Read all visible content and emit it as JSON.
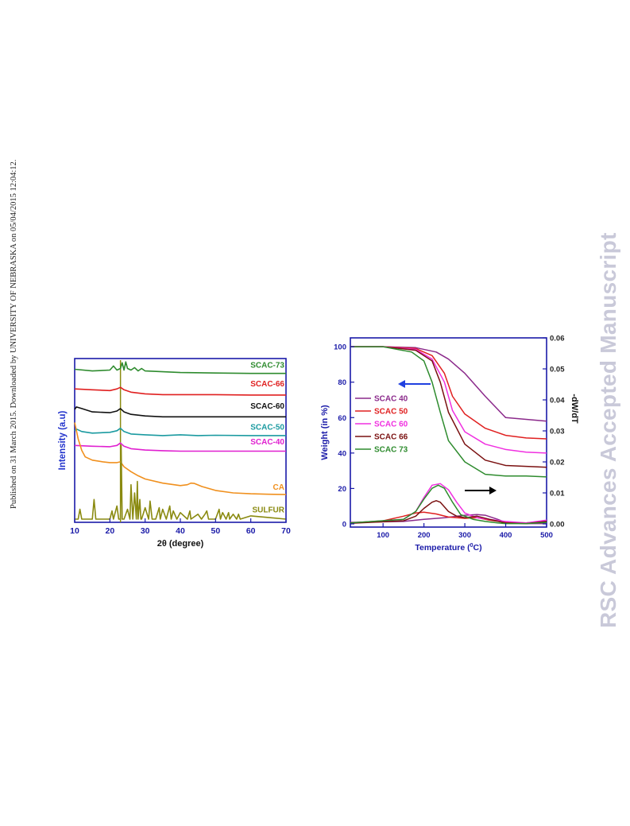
{
  "side_note": "Published on 31 March 2015. Downloaded by UNIVERSITY OF NEBRASKA on 05/04/2015 12:04:12.",
  "watermark": "RSC Advances Accepted Manuscript",
  "chart_data": [
    {
      "type": "line",
      "title": "",
      "xlabel": "2θ (degree)",
      "ylabel": "Intensity (a.u)",
      "xlim": [
        10,
        70
      ],
      "xticks": [
        10,
        20,
        30,
        40,
        50,
        60,
        70
      ],
      "grid": false,
      "legend": "direct labels at right end of each trace",
      "reference_line_x": 23,
      "colors": {
        "axis": "#1a1aa8"
      },
      "series": [
        {
          "name": "SCAC-73",
          "color": "#2e8b2e",
          "x": [
            10,
            15,
            20,
            21,
            22,
            23,
            23.5,
            24,
            24.5,
            25,
            26,
            27,
            28,
            29,
            30,
            35,
            40,
            50,
            60,
            70
          ],
          "y": [
            9.15,
            9.05,
            9.1,
            9.35,
            9.1,
            9.2,
            9.55,
            9.1,
            9.6,
            9.2,
            9.1,
            9.25,
            9.05,
            9.2,
            9.05,
            9.0,
            8.95,
            8.92,
            8.9,
            8.9
          ]
        },
        {
          "name": "SCAC-66",
          "color": "#e02020",
          "x": [
            10,
            15,
            20,
            22,
            23,
            24,
            26,
            30,
            35,
            40,
            50,
            60,
            70
          ],
          "y": [
            7.95,
            7.9,
            7.85,
            7.95,
            8.05,
            7.9,
            7.75,
            7.65,
            7.6,
            7.6,
            7.6,
            7.58,
            7.58
          ]
        },
        {
          "name": "SCAC-60",
          "color": "#111111",
          "x": [
            10,
            10.5,
            12,
            15,
            20,
            22,
            23,
            24,
            26,
            30,
            35,
            40,
            50,
            60,
            70
          ],
          "y": [
            6.7,
            6.85,
            6.75,
            6.55,
            6.5,
            6.6,
            6.75,
            6.55,
            6.4,
            6.3,
            6.25,
            6.25,
            6.25,
            6.25,
            6.25
          ]
        },
        {
          "name": "SCAC-50",
          "color": "#1a9aa0",
          "x": [
            10,
            10.5,
            12,
            15,
            20,
            22,
            23,
            24,
            26,
            30,
            35,
            40,
            45,
            50,
            60,
            70
          ],
          "y": [
            5.4,
            5.5,
            5.35,
            5.25,
            5.3,
            5.4,
            5.55,
            5.35,
            5.2,
            5.15,
            5.1,
            5.15,
            5.1,
            5.12,
            5.1,
            5.1
          ]
        },
        {
          "name": "SCAC-40",
          "color": "#e020d0",
          "x": [
            10,
            15,
            20,
            22,
            23,
            24,
            26,
            30,
            35,
            40,
            50,
            60,
            70
          ],
          "y": [
            4.5,
            4.45,
            4.42,
            4.5,
            4.65,
            4.45,
            4.3,
            4.22,
            4.18,
            4.15,
            4.15,
            4.15,
            4.15
          ]
        },
        {
          "name": "CA",
          "color": "#f0901e",
          "x": [
            10,
            11,
            12,
            13,
            15,
            18,
            20,
            22,
            23,
            24,
            26,
            28,
            30,
            35,
            40,
            42,
            43,
            44,
            46,
            50,
            55,
            60,
            65,
            70
          ],
          "y": [
            5.9,
            4.9,
            4.2,
            3.8,
            3.6,
            3.5,
            3.45,
            3.45,
            3.5,
            3.2,
            2.9,
            2.65,
            2.45,
            2.2,
            2.05,
            2.1,
            2.2,
            2.18,
            2.0,
            1.75,
            1.6,
            1.55,
            1.52,
            1.5
          ]
        },
        {
          "name": "SULFUR",
          "color": "#8a8a10",
          "x": [
            10,
            11,
            11.5,
            12,
            15,
            15.5,
            16,
            20,
            20.6,
            21,
            22,
            22.5,
            23,
            23.2,
            23.5,
            24,
            25,
            25.7,
            26,
            26.5,
            27,
            27.5,
            27.8,
            28,
            28.5,
            28.8,
            29,
            30,
            31,
            31.4,
            32,
            33,
            34,
            34.3,
            35,
            36,
            37,
            37.4,
            38,
            39,
            40,
            42,
            42.7,
            43,
            45,
            46,
            47,
            47.5,
            48,
            50,
            51,
            51.4,
            52,
            53,
            53.7,
            54,
            55,
            56,
            56.5,
            57,
            60,
            65,
            70
          ],
          "y": [
            0,
            0,
            0.6,
            0,
            0,
            1.2,
            0,
            0,
            0.5,
            0,
            0.8,
            0,
            0,
            4.5,
            0,
            0,
            0.6,
            0,
            2.1,
            0,
            1.6,
            0,
            2.3,
            0,
            1.2,
            0,
            0,
            0.7,
            0,
            1.1,
            0,
            0,
            0.7,
            0,
            0.6,
            0,
            0.8,
            0,
            0.5,
            0,
            0.4,
            0,
            0.5,
            0,
            0.3,
            0,
            0.3,
            0.5,
            0,
            0,
            0.6,
            0,
            0.4,
            0,
            0.4,
            0,
            0.3,
            0,
            0.3,
            0,
            0.2,
            0.1,
            0
          ]
        }
      ]
    },
    {
      "type": "line",
      "title": "",
      "xlabel": "Temperature (°C)",
      "xlabel_sup": "0",
      "ylabel": "Weight (in %)",
      "ylabel_right": "-dW/dT",
      "xlim": [
        20,
        500
      ],
      "ylim": [
        0,
        105
      ],
      "ylim_right": [
        0,
        0.06
      ],
      "xticks": [
        100,
        200,
        300,
        400,
        500
      ],
      "yticks": [
        0,
        20,
        40,
        60,
        80,
        100
      ],
      "yticks_right": [
        0.0,
        0.01,
        0.02,
        0.03,
        0.04,
        0.05,
        0.06
      ],
      "grid": false,
      "legend": "center-left",
      "arrows": [
        {
          "direction": "left",
          "color": "#2040e0",
          "meaning": "weight axis"
        },
        {
          "direction": "right",
          "color": "#000000",
          "meaning": "-dW/dT axis"
        }
      ],
      "colors": {
        "axis": "#1a1aa8"
      },
      "tga_series": [
        {
          "name": "SCAC 40",
          "color": "#8b2a8b",
          "x": [
            20,
            100,
            180,
            230,
            260,
            300,
            350,
            400,
            450,
            500
          ],
          "y": [
            100,
            100,
            99.5,
            97,
            93,
            85,
            72,
            60,
            59,
            58
          ]
        },
        {
          "name": "SCAC 50",
          "color": "#e02020",
          "x": [
            20,
            100,
            180,
            220,
            250,
            270,
            300,
            350,
            400,
            450,
            500
          ],
          "y": [
            100,
            100,
            99,
            95,
            85,
            72,
            62,
            54,
            50,
            48.5,
            48
          ]
        },
        {
          "name": "SCAC 60",
          "color": "#f030e0",
          "x": [
            20,
            100,
            180,
            220,
            250,
            270,
            300,
            350,
            400,
            450,
            500
          ],
          "y": [
            100,
            100,
            98.5,
            93,
            80,
            64,
            52,
            45,
            42,
            40.5,
            40
          ]
        },
        {
          "name": "SCAC 66",
          "color": "#7a1010",
          "x": [
            20,
            100,
            180,
            220,
            240,
            260,
            300,
            350,
            400,
            450,
            500
          ],
          "y": [
            100,
            100,
            98,
            92,
            80,
            63,
            45,
            36,
            33,
            32.5,
            32
          ]
        },
        {
          "name": "SCAC 73",
          "color": "#2e8b2e",
          "x": [
            20,
            100,
            170,
            200,
            220,
            240,
            260,
            300,
            350,
            400,
            450,
            500
          ],
          "y": [
            100,
            100,
            97,
            92,
            80,
            63,
            47,
            35,
            28,
            27,
            27,
            26.5
          ]
        }
      ],
      "dtg_series": [
        {
          "name": "SCAC 40",
          "color": "#8b2a8b",
          "x": [
            20,
            150,
            200,
            250,
            300,
            330,
            350,
            380,
            400,
            450,
            500
          ],
          "y": [
            0.0005,
            0.0008,
            0.0015,
            0.002,
            0.0028,
            0.003,
            0.0028,
            0.0015,
            0.0005,
            0.0001,
            0.0001
          ]
        },
        {
          "name": "SCAC 50",
          "color": "#e02020",
          "x": [
            20,
            100,
            150,
            180,
            200,
            230,
            260,
            300,
            330,
            360,
            400,
            450,
            500
          ],
          "y": [
            0.0003,
            0.001,
            0.0025,
            0.0035,
            0.0038,
            0.0032,
            0.0022,
            0.0018,
            0.002,
            0.0012,
            0.0005,
            0.0003,
            0.001
          ]
        },
        {
          "name": "SCAC 60",
          "color": "#f030e0",
          "x": [
            20,
            150,
            180,
            200,
            220,
            240,
            260,
            280,
            300,
            330,
            360,
            400,
            450,
            500
          ],
          "y": [
            0.0002,
            0.0015,
            0.004,
            0.0085,
            0.0125,
            0.013,
            0.011,
            0.007,
            0.0035,
            0.002,
            0.0015,
            0.0008,
            0.0003,
            0.0012
          ]
        },
        {
          "name": "SCAC 66",
          "color": "#7a1010",
          "x": [
            20,
            150,
            180,
            200,
            220,
            230,
            240,
            260,
            280,
            300,
            330,
            360,
            400,
            450,
            500
          ],
          "y": [
            0.0002,
            0.001,
            0.0025,
            0.005,
            0.007,
            0.0075,
            0.007,
            0.004,
            0.0025,
            0.002,
            0.0025,
            0.0015,
            0.0003,
            0.0001,
            0.0008
          ]
        },
        {
          "name": "SCAC 73",
          "color": "#2e8b2e",
          "x": [
            20,
            150,
            180,
            200,
            220,
            235,
            250,
            270,
            290,
            320,
            350,
            380,
            400,
            450,
            500
          ],
          "y": [
            0.0003,
            0.0015,
            0.004,
            0.008,
            0.0115,
            0.0125,
            0.0115,
            0.007,
            0.003,
            0.0015,
            0.0008,
            0.0003,
            0.0001,
            0.0001,
            0.0005
          ]
        }
      ]
    }
  ]
}
